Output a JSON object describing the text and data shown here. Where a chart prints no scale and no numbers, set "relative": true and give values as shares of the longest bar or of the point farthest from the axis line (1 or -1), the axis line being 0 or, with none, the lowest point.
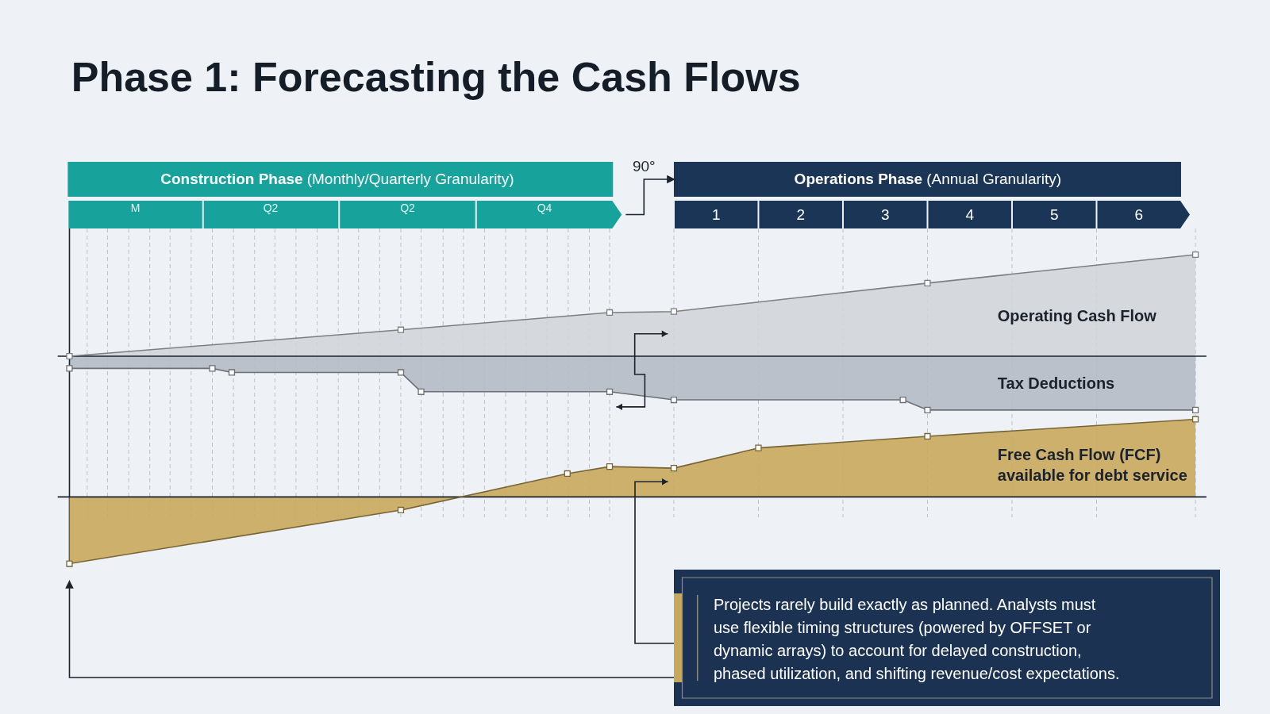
{
  "chart_data": [
    {
      "type": "area",
      "title": "Phase 1: Forecasting the Cash Flows",
      "relative": true,
      "marker": "square",
      "tick_labels": "x",
      "xlim": [
        -6.65,
        6.8
      ],
      "xticks": [
        {
          "value": -5.87,
          "label": "M"
        },
        {
          "value": -4.27,
          "label": "Q2"
        },
        {
          "value": -2.65,
          "label": "Q2"
        },
        {
          "value": -1.03,
          "label": "Q4"
        },
        1,
        2,
        3,
        4,
        5,
        6
      ],
      "ref_lines": [
        {
          "axis": "x",
          "value": -6.44,
          "line_style": "dashed",
          "color": "#b8c0ca"
        },
        {
          "axis": "x",
          "value": -6.2,
          "line_style": "dashed",
          "color": "#b8c0ca"
        },
        {
          "axis": "x",
          "value": -5.95,
          "line_style": "dashed",
          "color": "#b8c0ca"
        },
        {
          "axis": "x",
          "value": -5.7,
          "line_style": "dashed",
          "color": "#b8c0ca"
        },
        {
          "axis": "x",
          "value": -5.46,
          "line_style": "dashed",
          "color": "#b8c0ca"
        },
        {
          "axis": "x",
          "value": -5.21,
          "line_style": "dashed",
          "color": "#b8c0ca"
        },
        {
          "axis": "x",
          "value": -4.96,
          "line_style": "dashed",
          "color": "#b8c0ca"
        },
        {
          "axis": "x",
          "value": -4.71,
          "line_style": "dashed",
          "color": "#b8c0ca"
        },
        {
          "axis": "x",
          "value": -4.46,
          "line_style": "dashed",
          "color": "#b8c0ca"
        },
        {
          "axis": "x",
          "value": -4.22,
          "line_style": "dashed",
          "color": "#b8c0ca"
        },
        {
          "axis": "x",
          "value": -3.97,
          "line_style": "dashed",
          "color": "#b8c0ca"
        },
        {
          "axis": "x",
          "value": -3.72,
          "line_style": "dashed",
          "color": "#b8c0ca"
        },
        {
          "axis": "x",
          "value": -3.47,
          "line_style": "dashed",
          "color": "#b8c0ca"
        },
        {
          "axis": "x",
          "value": -3.23,
          "line_style": "dashed",
          "color": "#b8c0ca"
        },
        {
          "axis": "x",
          "value": -2.98,
          "line_style": "dashed",
          "color": "#b8c0ca"
        },
        {
          "axis": "x",
          "value": -2.73,
          "line_style": "dashed",
          "color": "#b8c0ca"
        },
        {
          "axis": "x",
          "value": -2.49,
          "line_style": "dashed",
          "color": "#b8c0ca"
        },
        {
          "axis": "x",
          "value": -2.23,
          "line_style": "dashed",
          "color": "#b8c0ca"
        },
        {
          "axis": "x",
          "value": -1.99,
          "line_style": "dashed",
          "color": "#b8c0ca"
        },
        {
          "axis": "x",
          "value": -1.74,
          "line_style": "dashed",
          "color": "#b8c0ca"
        },
        {
          "axis": "x",
          "value": -1.49,
          "line_style": "dashed",
          "color": "#b8c0ca"
        },
        {
          "axis": "x",
          "value": -1.25,
          "line_style": "dashed",
          "color": "#b8c0ca"
        },
        {
          "axis": "x",
          "value": -1.0,
          "line_style": "dashed",
          "color": "#b8c0ca"
        },
        {
          "axis": "x",
          "value": -0.75,
          "line_style": "dashed",
          "color": "#b8c0ca"
        },
        {
          "axis": "x",
          "value": -0.5,
          "line_style": "dashed",
          "color": "#b8c0ca"
        },
        {
          "axis": "x",
          "value": -0.26,
          "line_style": "dashed",
          "color": "#b8c0ca"
        },
        {
          "axis": "x",
          "value": 0.5,
          "line_style": "dashed",
          "color": "#b8c0ca"
        },
        {
          "axis": "x",
          "value": 1.5,
          "line_style": "dashed",
          "color": "#b8c0ca"
        },
        {
          "axis": "x",
          "value": 2.5,
          "line_style": "dashed",
          "color": "#b8c0ca"
        },
        {
          "axis": "x",
          "value": 3.5,
          "line_style": "dashed",
          "color": "#b8c0ca"
        },
        {
          "axis": "x",
          "value": 4.5,
          "line_style": "dashed",
          "color": "#b8c0ca"
        },
        {
          "axis": "x",
          "value": 5.5,
          "line_style": "dashed",
          "color": "#b8c0ca"
        },
        {
          "axis": "x",
          "value": 6.67,
          "line_style": "dashed",
          "color": "#b8c0ca"
        }
      ],
      "annotations": [
        "Construction Phase (Monthly/Quarterly Granularity)",
        "Operations Phase (Annual Granularity)",
        "90°"
      ],
      "series": [
        {
          "name": "Operating Cash Flow",
          "color": "#d1d5da",
          "x": [
            -6.65,
            -2.73,
            -0.26,
            0.5,
            3.5,
            6.67
          ],
          "values": [
            0,
            0.26,
            0.43,
            0.44,
            0.72,
            1
          ]
        },
        {
          "name": "Tax Deductions",
          "color": "#b4bbc5",
          "x": [
            -6.65,
            -4.96,
            -4.73,
            -2.73,
            -2.49,
            -0.26,
            0.5,
            3.21,
            3.5,
            6.67
          ],
          "values": [
            -0.12,
            -0.12,
            -0.16,
            -0.16,
            -0.35,
            -0.35,
            -0.43,
            -0.43,
            -0.53,
            -0.53
          ]
        }
      ]
    },
    {
      "type": "area",
      "relative": true,
      "marker": "square",
      "tick_labels": false,
      "xlim": [
        -6.65,
        6.8
      ],
      "series": [
        {
          "name": "Free Cash Flow (FCF) available for debt service",
          "color": "#c9a95c",
          "x": [
            -6.65,
            -2.73,
            -0.76,
            -0.26,
            0.5,
            1.5,
            3.5,
            6.67
          ],
          "values": [
            -0.86,
            -0.17,
            0.3,
            0.39,
            0.37,
            0.63,
            0.78,
            1
          ]
        }
      ]
    },
    {
      "type": "other",
      "annotations": [
        "Projects rarely build exactly as planned. Analysts must\nuse flexible timing structures (powered by OFFSET or\ndynamic arrays) to account for delayed construction,\nphased utilization, and shifting revenue/cost expectations."
      ]
    }
  ]
}
